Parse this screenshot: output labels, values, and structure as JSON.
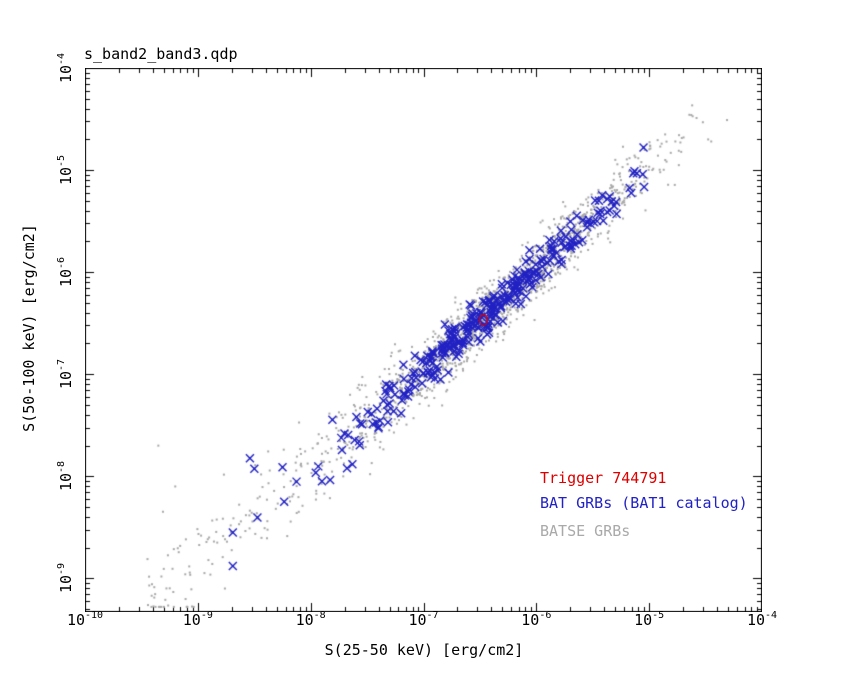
{
  "page": {
    "background": "#ffffff"
  },
  "title": "s_band2_band3.qdp",
  "chart_data": {
    "type": "scatter",
    "title": "s_band2_band3.qdp",
    "xlabel": "S(25-50 keV) [erg/cm2]",
    "ylabel": "S(50-100 keV) [erg/cm2]",
    "xscale": "log",
    "yscale": "log",
    "xlim_log": [
      -10,
      -4
    ],
    "ylim_log": [
      -9.33,
      -4
    ],
    "x_tick_exponents": [
      -10,
      -9,
      -8,
      -7,
      -6,
      -5,
      -4
    ],
    "y_tick_exponents": [
      -4,
      -5,
      -6,
      -7,
      -8,
      -9
    ],
    "grid": false,
    "frame_color": "#000000",
    "legend_position": "bottom-right",
    "series": [
      {
        "name": "BATSE GRBs",
        "marker": "dot",
        "color": "#a9a9a9",
        "approx_count": 1600,
        "relation": "logS(50-100keV) ~ logS(25-50keV)+0.02, scatter 0.15 dex widening to ~0.29 dex at faint end, spans ~3e-10..5e-5 erg/cm2",
        "generator": {
          "seed": 20011,
          "n": 1600,
          "x_mean": -6.3,
          "x_sd": 0.72,
          "tail_frac": 0.17,
          "tail_min": -9.45,
          "tail_max": -6.4,
          "x_min": -9.6,
          "x_max": -4.25,
          "y_offset": 0.02,
          "y_sigma_base": 0.15,
          "y_sigma_faint": 0.14,
          "faint_ref": -6.6,
          "faint_scale": 2.6,
          "curve_ref": -6.6,
          "curve_coeff": 0.03,
          "y_min": -9.28,
          "y_max": -4.05
        },
        "anchor_points_log": [
          [
            -9.35,
            -7.7
          ],
          [
            -9.2,
            -8.1
          ],
          [
            -4.58,
            -4.49
          ],
          [
            -4.31,
            -4.51
          ],
          [
            -4.45,
            -4.72
          ],
          [
            -8.76,
            -9.1
          ],
          [
            -8.9,
            -8.6
          ],
          [
            -5.3,
            -4.9
          ]
        ]
      },
      {
        "name": "BAT GRBs (BAT1 catalog)",
        "marker": "x",
        "color": "#2222c4",
        "approx_count": 320,
        "relation": "tight band along logS(50-100keV) ~ logS(25-50keV)+0.03, scatter ~0.1 dex, spans ~2e-9..9e-6 erg/cm2",
        "generator": {
          "seed": 7741,
          "n": 320,
          "x_mean": -6.35,
          "x_sd": 0.6,
          "tail_frac": 0.1,
          "tail_min": -8.6,
          "tail_max": -6.4,
          "x_min": -8.72,
          "x_max": -4.95,
          "y_offset": 0.03,
          "y_sigma_base": 0.1,
          "y_sigma_faint": 0.1,
          "faint_ref": -6.8,
          "faint_scale": 2.0,
          "curve_ref": -6.8,
          "curve_coeff": 0.02,
          "y_min": -9.0,
          "y_max": -4.6
        },
        "anchor_points_log": [
          [
            -8.69,
            -8.88
          ],
          [
            -8.69,
            -8.55
          ],
          [
            -5.05,
            -4.78
          ],
          [
            -7.9,
            -8.05
          ]
        ]
      },
      {
        "name": "Trigger 744791",
        "marker": "open-circle",
        "color": "#dd0000",
        "points": [
          [
            3.4e-07,
            3.4e-07
          ]
        ]
      }
    ]
  },
  "legend": {
    "entries": [
      {
        "label": "Trigger 744791",
        "color": "#dd0000"
      },
      {
        "label": "BAT GRBs (BAT1 catalog)",
        "color": "#2222c4"
      },
      {
        "label": "BATSE GRBs",
        "color": "#a9a9a9"
      }
    ]
  }
}
